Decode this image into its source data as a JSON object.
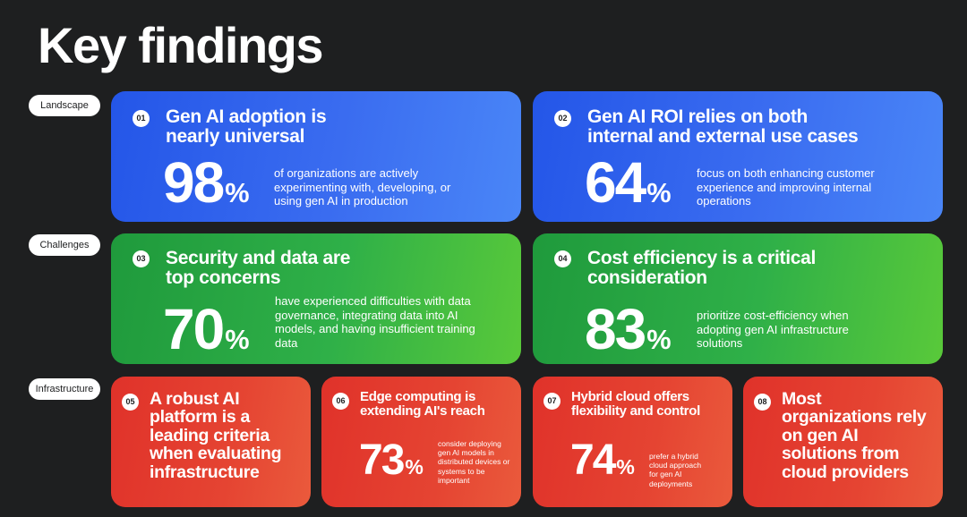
{
  "title": "Key findings",
  "sections": {
    "landscape": "Landscape",
    "challenges": "Challenges",
    "infrastructure": "Infrastructure"
  },
  "colors": {
    "background": "#1e1f20",
    "blue": "#2c5ff0",
    "green": "#2aa845",
    "red": "#e23d2e"
  },
  "cards": [
    {
      "num": "01",
      "title_line1": "Gen AI adoption is",
      "title_line2": "nearly universal",
      "stat": "98",
      "unit": "%",
      "desc": "of organizations are actively experimenting with, developing, or using gen AI in production"
    },
    {
      "num": "02",
      "title_line1": "Gen AI ROI relies on both",
      "title_line2": "internal and external use cases",
      "stat": "64",
      "unit": "%",
      "desc": "focus on both enhancing customer experience and improving internal operations"
    },
    {
      "num": "03",
      "title_line1": "Security and data are",
      "title_line2": "top concerns",
      "stat": "70",
      "unit": "%",
      "desc": "have experienced difficulties with data governance, integrating data into AI models, and having insufficient training data"
    },
    {
      "num": "04",
      "title_line1": "Cost efficiency is a critical",
      "title_line2": "consideration",
      "stat": "83",
      "unit": "%",
      "desc": "prioritize cost-efficiency when adopting gen AI infrastructure solutions"
    },
    {
      "num": "05",
      "title": "A robust AI platform is a leading criteria when evaluating infrastructure"
    },
    {
      "num": "06",
      "title": "Edge computing is extending AI's reach",
      "stat": "73",
      "unit": "%",
      "desc": "consider deploying gen AI models in distributed devices or systems to be important"
    },
    {
      "num": "07",
      "title": "Hybrid cloud offers flexibility and control",
      "stat": "74",
      "unit": "%",
      "desc": "prefer a hybrid cloud approach for gen AI deployments"
    },
    {
      "num": "08",
      "title": "Most organizations rely on gen AI solutions from cloud providers"
    }
  ]
}
